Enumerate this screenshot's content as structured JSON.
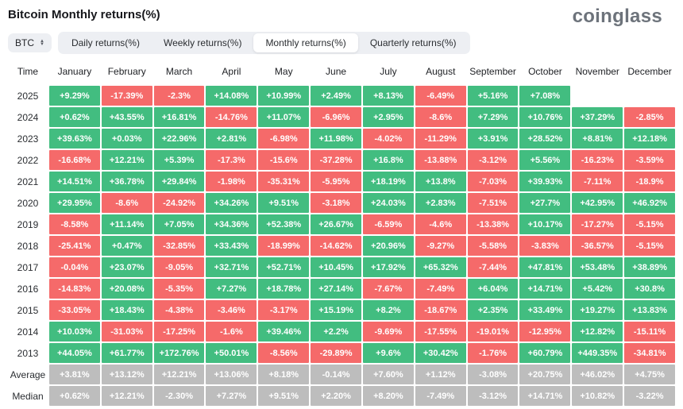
{
  "header": {
    "title": "Bitcoin Monthly returns(%)",
    "logo": "coinglass"
  },
  "controls": {
    "symbol_select": {
      "value": "BTC"
    },
    "tabs": [
      {
        "label": "Daily returns(%)",
        "active": false
      },
      {
        "label": "Weekly returns(%)",
        "active": false
      },
      {
        "label": "Monthly returns(%)",
        "active": true
      },
      {
        "label": "Quarterly returns(%)",
        "active": false
      }
    ]
  },
  "colors": {
    "positive": "#42bd80",
    "negative": "#f56a6a",
    "neutral": "#bdbdbd"
  },
  "table": {
    "columns": [
      "Time",
      "January",
      "February",
      "March",
      "April",
      "May",
      "June",
      "July",
      "August",
      "September",
      "October",
      "November",
      "December"
    ],
    "rows": [
      {
        "label": "2025",
        "cells": [
          [
            "+9.29%",
            "g"
          ],
          [
            "-17.39%",
            "r"
          ],
          [
            "-2.3%",
            "r"
          ],
          [
            "+14.08%",
            "g"
          ],
          [
            "+10.99%",
            "g"
          ],
          [
            "+2.49%",
            "g"
          ],
          [
            "+8.13%",
            "g"
          ],
          [
            "-6.49%",
            "r"
          ],
          [
            "+5.16%",
            "g"
          ],
          [
            "+7.08%",
            "g"
          ],
          [
            "",
            "e"
          ],
          [
            "",
            "e"
          ]
        ]
      },
      {
        "label": "2024",
        "cells": [
          [
            "+0.62%",
            "g"
          ],
          [
            "+43.55%",
            "g"
          ],
          [
            "+16.81%",
            "g"
          ],
          [
            "-14.76%",
            "r"
          ],
          [
            "+11.07%",
            "g"
          ],
          [
            "-6.96%",
            "r"
          ],
          [
            "+2.95%",
            "g"
          ],
          [
            "-8.6%",
            "r"
          ],
          [
            "+7.29%",
            "g"
          ],
          [
            "+10.76%",
            "g"
          ],
          [
            "+37.29%",
            "g"
          ],
          [
            "-2.85%",
            "r"
          ]
        ]
      },
      {
        "label": "2023",
        "cells": [
          [
            "+39.63%",
            "g"
          ],
          [
            "+0.03%",
            "g"
          ],
          [
            "+22.96%",
            "g"
          ],
          [
            "+2.81%",
            "g"
          ],
          [
            "-6.98%",
            "r"
          ],
          [
            "+11.98%",
            "g"
          ],
          [
            "-4.02%",
            "r"
          ],
          [
            "-11.29%",
            "r"
          ],
          [
            "+3.91%",
            "g"
          ],
          [
            "+28.52%",
            "g"
          ],
          [
            "+8.81%",
            "g"
          ],
          [
            "+12.18%",
            "g"
          ]
        ]
      },
      {
        "label": "2022",
        "cells": [
          [
            "-16.68%",
            "r"
          ],
          [
            "+12.21%",
            "g"
          ],
          [
            "+5.39%",
            "g"
          ],
          [
            "-17.3%",
            "r"
          ],
          [
            "-15.6%",
            "r"
          ],
          [
            "-37.28%",
            "r"
          ],
          [
            "+16.8%",
            "g"
          ],
          [
            "-13.88%",
            "r"
          ],
          [
            "-3.12%",
            "r"
          ],
          [
            "+5.56%",
            "g"
          ],
          [
            "-16.23%",
            "r"
          ],
          [
            "-3.59%",
            "r"
          ]
        ]
      },
      {
        "label": "2021",
        "cells": [
          [
            "+14.51%",
            "g"
          ],
          [
            "+36.78%",
            "g"
          ],
          [
            "+29.84%",
            "g"
          ],
          [
            "-1.98%",
            "r"
          ],
          [
            "-35.31%",
            "r"
          ],
          [
            "-5.95%",
            "r"
          ],
          [
            "+18.19%",
            "g"
          ],
          [
            "+13.8%",
            "g"
          ],
          [
            "-7.03%",
            "r"
          ],
          [
            "+39.93%",
            "g"
          ],
          [
            "-7.11%",
            "r"
          ],
          [
            "-18.9%",
            "r"
          ]
        ]
      },
      {
        "label": "2020",
        "cells": [
          [
            "+29.95%",
            "g"
          ],
          [
            "-8.6%",
            "r"
          ],
          [
            "-24.92%",
            "r"
          ],
          [
            "+34.26%",
            "g"
          ],
          [
            "+9.51%",
            "g"
          ],
          [
            "-3.18%",
            "r"
          ],
          [
            "+24.03%",
            "g"
          ],
          [
            "+2.83%",
            "g"
          ],
          [
            "-7.51%",
            "r"
          ],
          [
            "+27.7%",
            "g"
          ],
          [
            "+42.95%",
            "g"
          ],
          [
            "+46.92%",
            "g"
          ]
        ]
      },
      {
        "label": "2019",
        "cells": [
          [
            "-8.58%",
            "r"
          ],
          [
            "+11.14%",
            "g"
          ],
          [
            "+7.05%",
            "g"
          ],
          [
            "+34.36%",
            "g"
          ],
          [
            "+52.38%",
            "g"
          ],
          [
            "+26.67%",
            "g"
          ],
          [
            "-6.59%",
            "r"
          ],
          [
            "-4.6%",
            "r"
          ],
          [
            "-13.38%",
            "r"
          ],
          [
            "+10.17%",
            "g"
          ],
          [
            "-17.27%",
            "r"
          ],
          [
            "-5.15%",
            "r"
          ]
        ]
      },
      {
        "label": "2018",
        "cells": [
          [
            "-25.41%",
            "r"
          ],
          [
            "+0.47%",
            "g"
          ],
          [
            "-32.85%",
            "r"
          ],
          [
            "+33.43%",
            "g"
          ],
          [
            "-18.99%",
            "r"
          ],
          [
            "-14.62%",
            "r"
          ],
          [
            "+20.96%",
            "g"
          ],
          [
            "-9.27%",
            "r"
          ],
          [
            "-5.58%",
            "r"
          ],
          [
            "-3.83%",
            "r"
          ],
          [
            "-36.57%",
            "r"
          ],
          [
            "-5.15%",
            "r"
          ]
        ]
      },
      {
        "label": "2017",
        "cells": [
          [
            "-0.04%",
            "r"
          ],
          [
            "+23.07%",
            "g"
          ],
          [
            "-9.05%",
            "r"
          ],
          [
            "+32.71%",
            "g"
          ],
          [
            "+52.71%",
            "g"
          ],
          [
            "+10.45%",
            "g"
          ],
          [
            "+17.92%",
            "g"
          ],
          [
            "+65.32%",
            "g"
          ],
          [
            "-7.44%",
            "r"
          ],
          [
            "+47.81%",
            "g"
          ],
          [
            "+53.48%",
            "g"
          ],
          [
            "+38.89%",
            "g"
          ]
        ]
      },
      {
        "label": "2016",
        "cells": [
          [
            "-14.83%",
            "r"
          ],
          [
            "+20.08%",
            "g"
          ],
          [
            "-5.35%",
            "r"
          ],
          [
            "+7.27%",
            "g"
          ],
          [
            "+18.78%",
            "g"
          ],
          [
            "+27.14%",
            "g"
          ],
          [
            "-7.67%",
            "r"
          ],
          [
            "-7.49%",
            "r"
          ],
          [
            "+6.04%",
            "g"
          ],
          [
            "+14.71%",
            "g"
          ],
          [
            "+5.42%",
            "g"
          ],
          [
            "+30.8%",
            "g"
          ]
        ]
      },
      {
        "label": "2015",
        "cells": [
          [
            "-33.05%",
            "r"
          ],
          [
            "+18.43%",
            "g"
          ],
          [
            "-4.38%",
            "r"
          ],
          [
            "-3.46%",
            "r"
          ],
          [
            "-3.17%",
            "r"
          ],
          [
            "+15.19%",
            "g"
          ],
          [
            "+8.2%",
            "g"
          ],
          [
            "-18.67%",
            "r"
          ],
          [
            "+2.35%",
            "g"
          ],
          [
            "+33.49%",
            "g"
          ],
          [
            "+19.27%",
            "g"
          ],
          [
            "+13.83%",
            "g"
          ]
        ]
      },
      {
        "label": "2014",
        "cells": [
          [
            "+10.03%",
            "g"
          ],
          [
            "-31.03%",
            "r"
          ],
          [
            "-17.25%",
            "r"
          ],
          [
            "-1.6%",
            "r"
          ],
          [
            "+39.46%",
            "g"
          ],
          [
            "+2.2%",
            "g"
          ],
          [
            "-9.69%",
            "r"
          ],
          [
            "-17.55%",
            "r"
          ],
          [
            "-19.01%",
            "r"
          ],
          [
            "-12.95%",
            "r"
          ],
          [
            "+12.82%",
            "g"
          ],
          [
            "-15.11%",
            "r"
          ]
        ]
      },
      {
        "label": "2013",
        "cells": [
          [
            "+44.05%",
            "g"
          ],
          [
            "+61.77%",
            "g"
          ],
          [
            "+172.76%",
            "g"
          ],
          [
            "+50.01%",
            "g"
          ],
          [
            "-8.56%",
            "r"
          ],
          [
            "-29.89%",
            "r"
          ],
          [
            "+9.6%",
            "g"
          ],
          [
            "+30.42%",
            "g"
          ],
          [
            "-1.76%",
            "r"
          ],
          [
            "+60.79%",
            "g"
          ],
          [
            "+449.35%",
            "g"
          ],
          [
            "-34.81%",
            "r"
          ]
        ]
      },
      {
        "label": "Average",
        "cells": [
          [
            "+3.81%",
            "n"
          ],
          [
            "+13.12%",
            "n"
          ],
          [
            "+12.21%",
            "n"
          ],
          [
            "+13.06%",
            "n"
          ],
          [
            "+8.18%",
            "n"
          ],
          [
            "-0.14%",
            "n"
          ],
          [
            "+7.60%",
            "n"
          ],
          [
            "+1.12%",
            "n"
          ],
          [
            "-3.08%",
            "n"
          ],
          [
            "+20.75%",
            "n"
          ],
          [
            "+46.02%",
            "n"
          ],
          [
            "+4.75%",
            "n"
          ]
        ]
      },
      {
        "label": "Median",
        "cells": [
          [
            "+0.62%",
            "n"
          ],
          [
            "+12.21%",
            "n"
          ],
          [
            "-2.30%",
            "n"
          ],
          [
            "+7.27%",
            "n"
          ],
          [
            "+9.51%",
            "n"
          ],
          [
            "+2.20%",
            "n"
          ],
          [
            "+8.20%",
            "n"
          ],
          [
            "-7.49%",
            "n"
          ],
          [
            "-3.12%",
            "n"
          ],
          [
            "+14.71%",
            "n"
          ],
          [
            "+10.82%",
            "n"
          ],
          [
            "-3.22%",
            "n"
          ]
        ]
      }
    ]
  }
}
